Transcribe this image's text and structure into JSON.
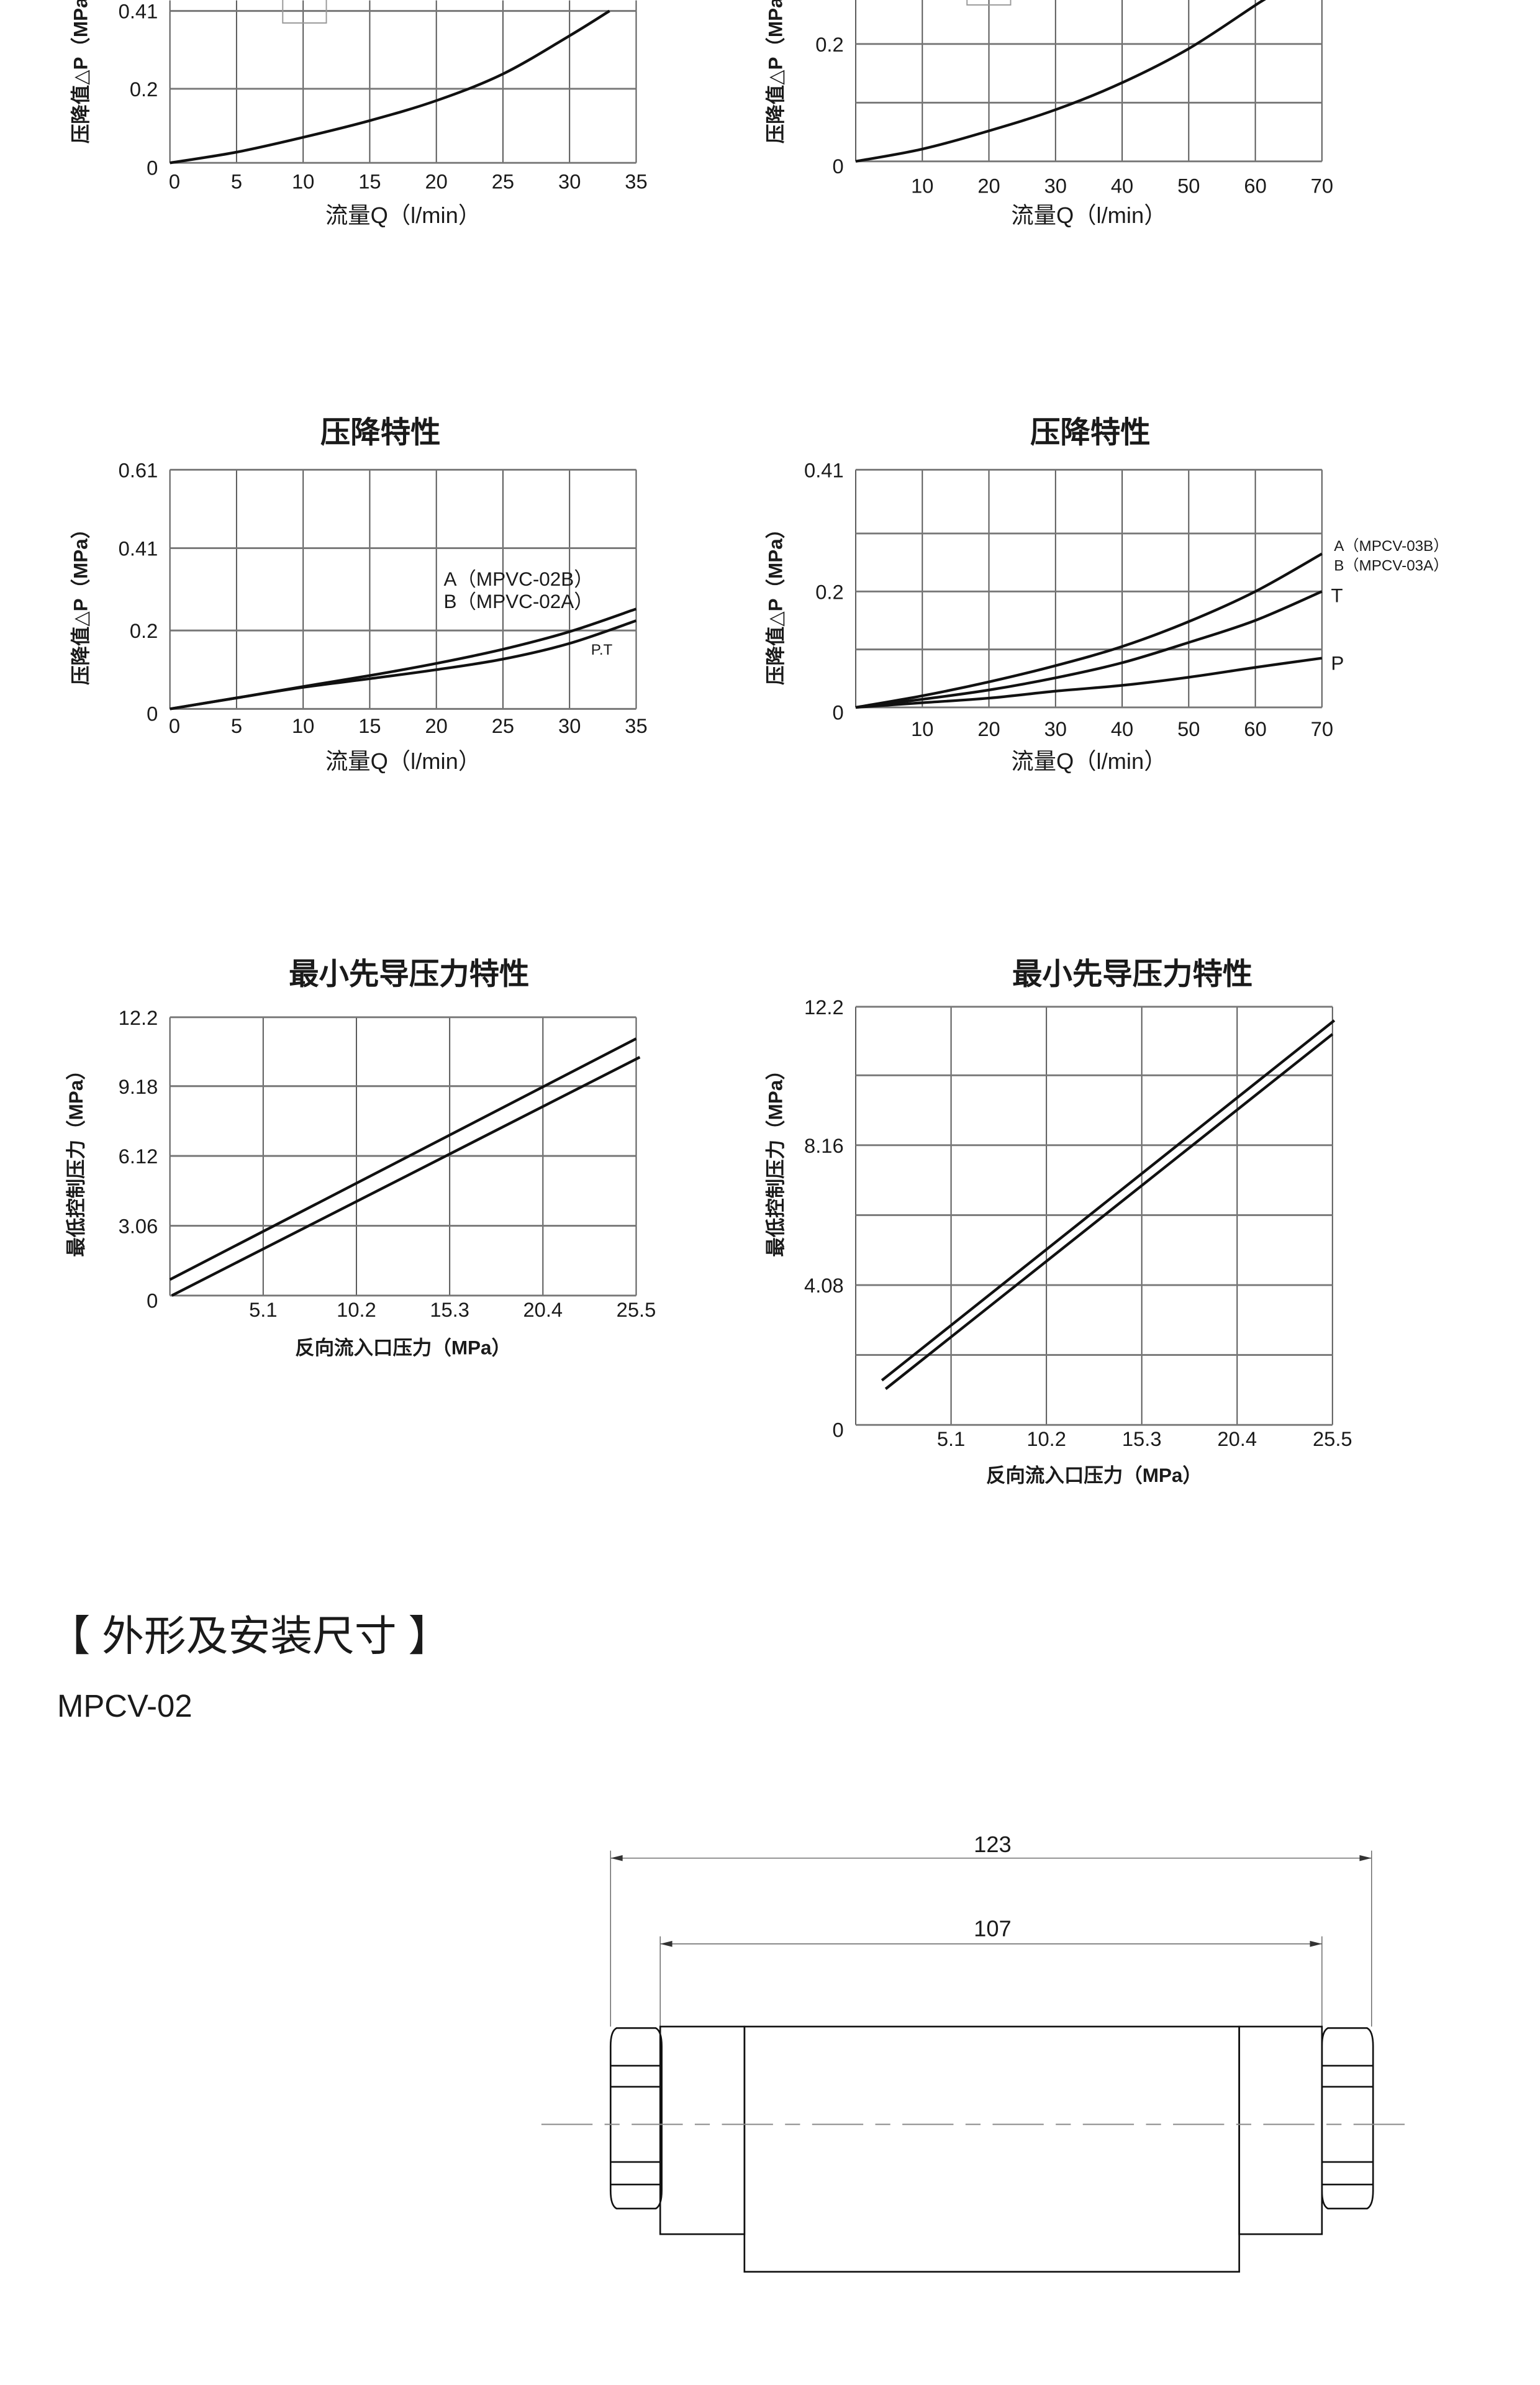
{
  "chart_data": [
    {
      "type": "line",
      "xlabel": "流量Q（l/min）",
      "ylabel": "压降值△P（MPa）",
      "x_ticks": [
        "0",
        "5",
        "10",
        "15",
        "20",
        "25",
        "30",
        "35"
      ],
      "y_ticks": [
        {
          "v": 0,
          "label": "0"
        },
        {
          "v": 0.2,
          "label": "0.2"
        },
        {
          "v": 0.41,
          "label": "0.41"
        }
      ],
      "x_grid": [
        0,
        5,
        10,
        15,
        20,
        25,
        30,
        35
      ],
      "y_grid": [
        0,
        0.2,
        0.41
      ],
      "xlim": [
        0,
        35
      ],
      "ylim": [
        0,
        0.41
      ],
      "grid": true,
      "series": [
        {
          "x": [
            0,
            5,
            10,
            15,
            20,
            25,
            30,
            33
          ],
          "y": [
            0,
            0.029,
            0.069,
            0.114,
            0.168,
            0.24,
            0.343,
            0.41
          ]
        }
      ]
    },
    {
      "type": "line",
      "xlabel": "流量Q（l/min）",
      "ylabel": "压降值△P（MPa）",
      "x_ticks": [
        "10",
        "20",
        "30",
        "40",
        "50",
        "60",
        "70"
      ],
      "y_ticks": [
        {
          "v": 0,
          "label": "0"
        },
        {
          "v": 0.2,
          "label": "0.2"
        }
      ],
      "x_grid": [
        0,
        10,
        20,
        30,
        40,
        50,
        60,
        70
      ],
      "y_grid": [
        0,
        0.1,
        0.2,
        0.3,
        0.41
      ],
      "xlim": [
        0,
        70
      ],
      "ylim": [
        0,
        0.41
      ],
      "grid": true,
      "series": [
        {
          "x": [
            0,
            10,
            20,
            30,
            40,
            50,
            60,
            62
          ],
          "y": [
            0,
            0.021,
            0.052,
            0.088,
            0.134,
            0.192,
            0.266,
            0.28
          ]
        }
      ]
    },
    {
      "type": "line",
      "title": "压降特性",
      "xlabel": "流量Q（l/min）",
      "ylabel": "压降值△P（MPa）",
      "x_ticks": [
        "0",
        "5",
        "10",
        "15",
        "20",
        "25",
        "30",
        "35"
      ],
      "y_ticks": [
        {
          "v": 0,
          "label": "0"
        },
        {
          "v": 0.2,
          "label": "0.2"
        },
        {
          "v": 0.41,
          "label": "0.41"
        },
        {
          "v": 0.61,
          "label": "0.61"
        }
      ],
      "x_grid": [
        0,
        5,
        10,
        15,
        20,
        25,
        30,
        35
      ],
      "y_grid": [
        0,
        0.2,
        0.41,
        0.61
      ],
      "xlim": [
        0,
        35
      ],
      "ylim": [
        0,
        0.61
      ],
      "grid": true,
      "series": [
        {
          "name": "A（MPVC-02B）",
          "x": [
            0,
            5,
            10,
            15,
            20,
            25,
            30,
            35
          ],
          "y": [
            0,
            0.028,
            0.057,
            0.085,
            0.116,
            0.152,
            0.197,
            0.255
          ]
        },
        {
          "name": "P.T",
          "x": [
            0,
            5,
            10,
            15,
            20,
            25,
            30,
            35
          ],
          "y": [
            0,
            0.028,
            0.055,
            0.077,
            0.1,
            0.127,
            0.167,
            0.225
          ]
        }
      ],
      "annotations": [
        "A（MPVC-02B）",
        "B（MPVC-02A）",
        "P.T"
      ]
    },
    {
      "type": "line",
      "title": "压降特性",
      "xlabel": "流量Q（l/min）",
      "ylabel": "压降值△P（MPa）",
      "x_ticks": [
        "10",
        "20",
        "30",
        "40",
        "50",
        "60",
        "70"
      ],
      "y_ticks": [
        {
          "v": 0,
          "label": "0"
        },
        {
          "v": 0.2,
          "label": "0.2"
        },
        {
          "v": 0.41,
          "label": "0.41"
        }
      ],
      "x_grid": [
        0,
        10,
        20,
        30,
        40,
        50,
        60,
        70
      ],
      "y_grid": [
        0,
        0.1,
        0.2,
        0.3,
        0.41
      ],
      "xlim": [
        0,
        70
      ],
      "ylim": [
        0,
        0.41
      ],
      "grid": true,
      "series": [
        {
          "name": "A（MPCV-03B）",
          "x": [
            0,
            10,
            20,
            30,
            40,
            50,
            60,
            70
          ],
          "y": [
            0,
            0.02,
            0.044,
            0.072,
            0.105,
            0.148,
            0.2,
            0.265
          ]
        },
        {
          "name": "T",
          "x": [
            0,
            10,
            20,
            30,
            40,
            50,
            60,
            70
          ],
          "y": [
            0,
            0.014,
            0.03,
            0.051,
            0.077,
            0.112,
            0.15,
            0.2
          ]
        },
        {
          "name": "P",
          "x": [
            0,
            10,
            20,
            30,
            40,
            50,
            60,
            70
          ],
          "y": [
            0,
            0.008,
            0.016,
            0.028,
            0.038,
            0.052,
            0.069,
            0.085
          ]
        }
      ],
      "annotations": [
        "A（MPCV-03B）",
        "B（MPCV-03A）",
        "T",
        "P"
      ]
    },
    {
      "type": "line",
      "title": "最小先导压力特性",
      "xlabel": "反向流入口压力（MPa）",
      "ylabel": "最低控制压力（MPa）",
      "x_ticks": [
        "5.1",
        "10.2",
        "15.3",
        "20.4",
        "25.5"
      ],
      "y_ticks": [
        {
          "v": 0,
          "label": "0"
        },
        {
          "v": 3.06,
          "label": "3.06"
        },
        {
          "v": 6.12,
          "label": "6.12"
        },
        {
          "v": 9.18,
          "label": "9.18"
        },
        {
          "v": 12.2,
          "label": "12.2"
        }
      ],
      "x_grid": [
        0,
        5.1,
        10.2,
        15.3,
        20.4,
        25.5
      ],
      "y_grid": [
        0,
        3.06,
        6.12,
        9.18,
        12.2
      ],
      "xlim": [
        0,
        25.5
      ],
      "ylim": [
        0,
        12.2
      ],
      "grid": true,
      "series": [
        {
          "x": [
            0,
            25.5
          ],
          "y": [
            0.7,
            11.26
          ]
        },
        {
          "x": [
            0.1,
            25.7
          ],
          "y": [
            0,
            10.45
          ]
        }
      ]
    },
    {
      "type": "line",
      "title": "最小先导压力特性",
      "xlabel": "反向流入口压力（MPa）",
      "ylabel": "最低控制压力（MPa）",
      "x_ticks": [
        "5.1",
        "10.2",
        "15.3",
        "20.4",
        "25.5"
      ],
      "y_ticks": [
        {
          "v": 0,
          "label": "0"
        },
        {
          "v": 4.08,
          "label": "4.08"
        },
        {
          "v": 8.16,
          "label": "8.16"
        },
        {
          "v": 12.2,
          "label": "12.2"
        }
      ],
      "x_grid": [
        0,
        5.1,
        10.2,
        15.3,
        20.4,
        25.5
      ],
      "y_grid": [
        0,
        2.04,
        4.08,
        6.12,
        8.16,
        10.2,
        12.2
      ],
      "xlim": [
        0,
        25.5
      ],
      "ylim": [
        0,
        12.2
      ],
      "grid": true,
      "series": [
        {
          "x": [
            1.4,
            25.6
          ],
          "y": [
            1.3,
            11.8
          ]
        },
        {
          "x": [
            1.6,
            25.5
          ],
          "y": [
            1.05,
            11.4
          ]
        }
      ]
    }
  ],
  "section": {
    "title": "【 外形及安装尺寸 】",
    "model": "MPCV-02",
    "dim_overall": "123",
    "dim_body": "107"
  }
}
